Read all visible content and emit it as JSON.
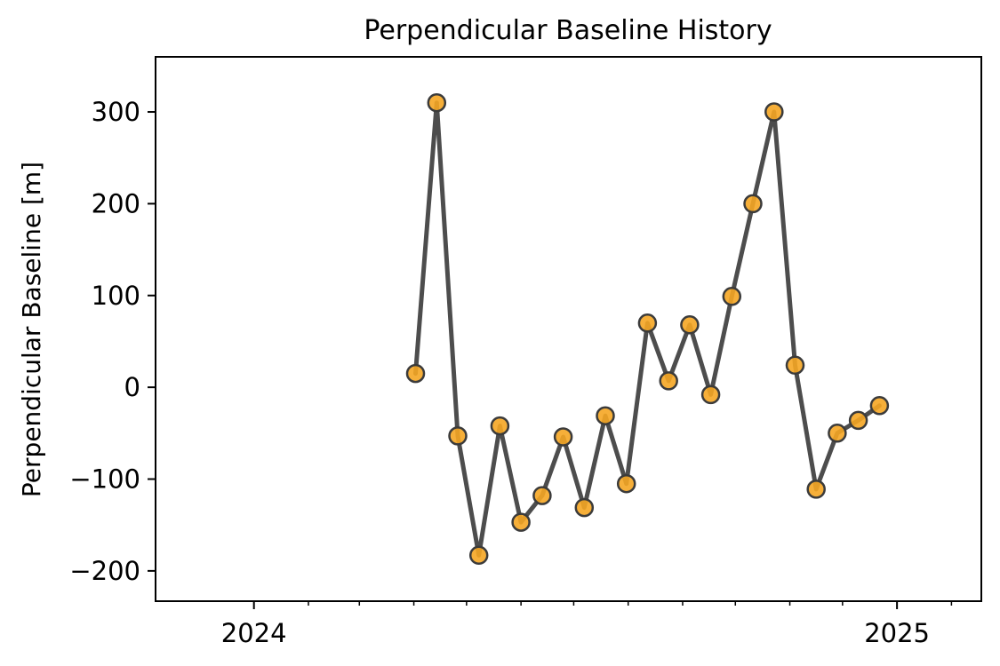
{
  "chart_data": {
    "type": "line",
    "title": "Perpendicular Baseline History",
    "xlabel": "",
    "ylabel": "Perpendicular Baseline [m]",
    "x_axis_type": "date",
    "xlim": [
      "2023-11-06",
      "2025-02-18"
    ],
    "ylim": [
      -233,
      360
    ],
    "y_ticks": [
      300,
      200,
      100,
      0,
      -100,
      -200
    ],
    "y_tick_labels": [
      "300",
      "200",
      "100",
      "0",
      "−100",
      "−200"
    ],
    "x_major_ticks": [
      "2024-01-01",
      "2025-01-01"
    ],
    "x_tick_labels": [
      "2024",
      "2025"
    ],
    "x_minor_ticks": [
      "2024-02-01",
      "2024-03-01",
      "2024-04-01",
      "2024-05-01",
      "2024-06-01",
      "2024-07-01",
      "2024-08-01",
      "2024-09-01",
      "2024-10-01",
      "2024-11-01",
      "2024-12-01",
      "2025-02-01"
    ],
    "grid": false,
    "legend": "none",
    "line_color": "#4d4d4d",
    "marker_color": "#f5a623",
    "marker_edge_color": "#3b3b3b",
    "x": [
      "2024-04-02",
      "2024-04-14",
      "2024-04-26",
      "2024-05-08",
      "2024-05-20",
      "2024-06-01",
      "2024-06-13",
      "2024-06-25",
      "2024-07-07",
      "2024-07-19",
      "2024-07-31",
      "2024-08-12",
      "2024-08-24",
      "2024-09-05",
      "2024-09-17",
      "2024-09-29",
      "2024-10-11",
      "2024-10-23",
      "2024-11-04",
      "2024-11-16",
      "2024-11-28",
      "2024-12-10",
      "2024-12-22"
    ],
    "y": [
      15,
      310,
      -53,
      -183,
      -42,
      -147,
      -118,
      -54,
      -131,
      -31,
      -105,
      70,
      7,
      68,
      -8,
      99,
      200,
      300,
      24,
      -111,
      -50,
      -36,
      -20
    ]
  }
}
